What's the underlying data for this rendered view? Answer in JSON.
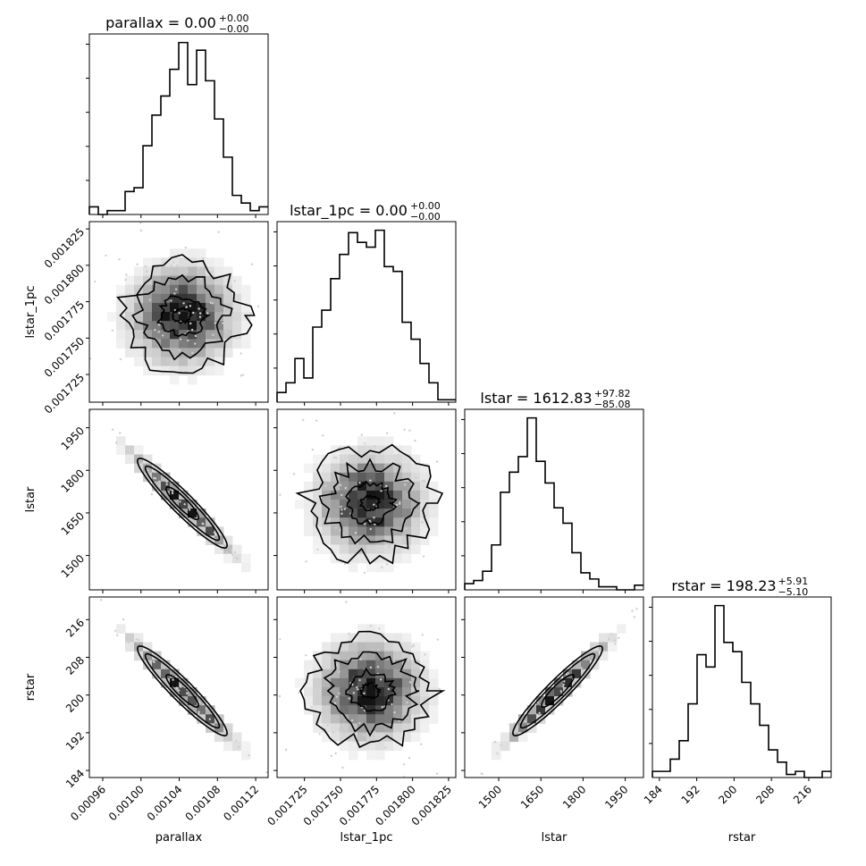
{
  "chart_data": {
    "type": "corner",
    "parameters": [
      "parallax",
      "lstar_1pc",
      "lstar",
      "rstar"
    ],
    "titles": [
      {
        "param": "parallax",
        "label": "parallax = 0.00",
        "plus": "+0.00",
        "minus": "−0.00"
      },
      {
        "param": "lstar_1pc",
        "label": "lstar_1pc = 0.00",
        "plus": "+0.00",
        "minus": "−0.00"
      },
      {
        "param": "lstar",
        "label": "lstar = 1612.83",
        "plus": "+97.82",
        "minus": "−85.08"
      },
      {
        "param": "rstar",
        "label": "rstar = 198.23",
        "plus": "+5.91",
        "minus": "−5.10"
      }
    ],
    "axis_labels": [
      "parallax",
      "lstar_1pc",
      "lstar",
      "rstar"
    ],
    "ranges": {
      "parallax": [
        0.000946,
        0.001133
      ],
      "lstar_1pc": [
        0.001706,
        0.00183
      ],
      "lstar": [
        1379,
        2015
      ],
      "rstar": [
        182.5,
        220.8
      ]
    },
    "ticks": {
      "parallax": [
        "0.00096",
        "0.00100",
        "0.00104",
        "0.00108",
        "0.00112"
      ],
      "lstar_1pc": [
        "0.001725",
        "0.001750",
        "0.001775",
        "0.001800",
        "0.001825"
      ],
      "lstar": [
        "1500",
        "1650",
        "1800",
        "1950"
      ],
      "rstar": [
        "184",
        "192",
        "200",
        "208",
        "216"
      ]
    },
    "tick_values": {
      "parallax": [
        0.00096,
        0.001,
        0.00104,
        0.00108,
        0.00112
      ],
      "lstar_1pc": [
        0.001725,
        0.00175,
        0.001775,
        0.0018,
        0.001825
      ],
      "lstar": [
        1500,
        1650,
        1800,
        1950
      ],
      "rstar": [
        184,
        192,
        200,
        208,
        216
      ]
    },
    "histograms": {
      "parallax": [
        2,
        0,
        1,
        1,
        6,
        7,
        18,
        26,
        31,
        38,
        45,
        34,
        43,
        35,
        25,
        15,
        5,
        3,
        1,
        2
      ],
      "lstar_1pc": [
        4,
        8,
        18,
        10,
        31,
        38,
        51,
        61,
        70,
        66,
        64,
        71,
        56,
        54,
        33,
        26,
        16,
        8,
        1,
        1
      ],
      "lstar": [
        4,
        6,
        12,
        29,
        63,
        76,
        86,
        111,
        83,
        69,
        53,
        43,
        24,
        11,
        7,
        2,
        2,
        0,
        0,
        3
      ],
      "rstar": [
        2,
        2,
        6,
        12,
        24,
        40,
        36,
        56,
        44,
        41,
        31,
        24,
        17,
        9,
        5,
        1,
        2,
        0,
        0,
        2
      ]
    },
    "pairs": [
      {
        "x": "parallax",
        "y": "lstar_1pc",
        "correlation": 0.0
      },
      {
        "x": "parallax",
        "y": "lstar",
        "correlation": -0.97
      },
      {
        "x": "lstar_1pc",
        "y": "lstar",
        "correlation": 0.0
      },
      {
        "x": "parallax",
        "y": "rstar",
        "correlation": -0.97
      },
      {
        "x": "lstar_1pc",
        "y": "rstar",
        "correlation": 0.0
      },
      {
        "x": "lstar",
        "y": "rstar",
        "correlation": 0.99
      }
    ],
    "grid": false,
    "legend": "none"
  }
}
